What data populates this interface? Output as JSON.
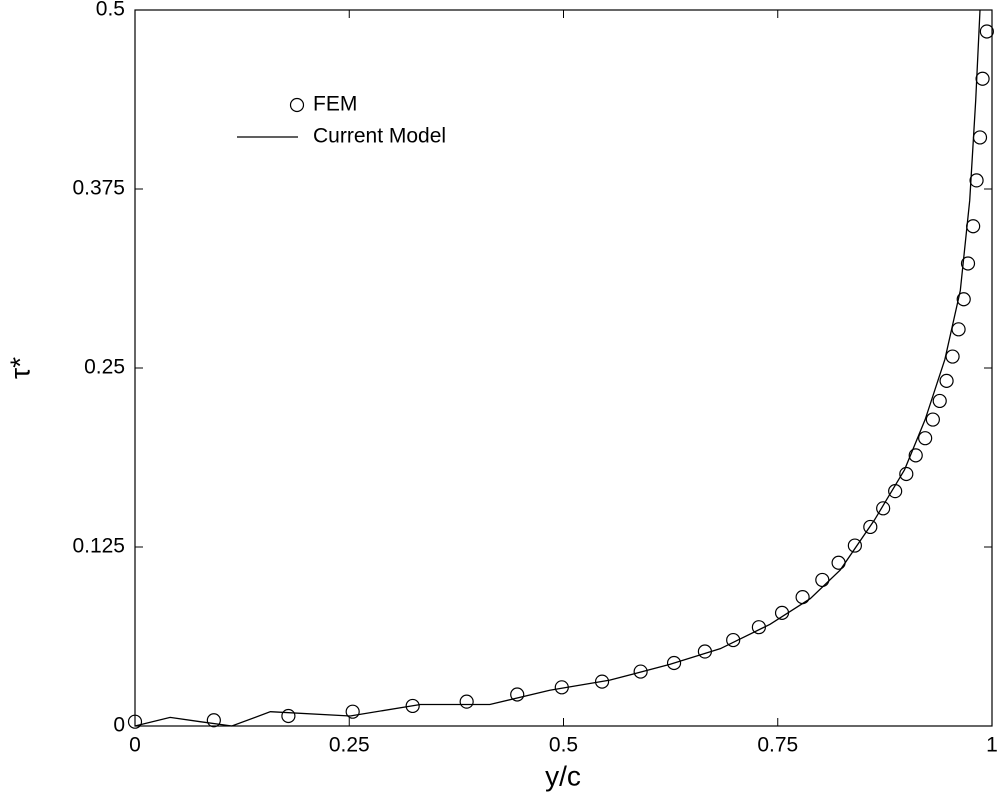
{
  "chart_data": {
    "type": "line",
    "xlabel": "y/c",
    "ylabel": "τ*",
    "xlim": [
      0,
      1
    ],
    "ylim": [
      0,
      0.5
    ],
    "xticks": [
      0,
      0.25,
      0.5,
      0.75,
      1
    ],
    "yticks": [
      0,
      0.125,
      0.25,
      0.375,
      0.5
    ],
    "legend": "upper left",
    "series": [
      {
        "name": "FEM",
        "color": "#000000",
        "style": "markers",
        "x": [
          0,
          0.092,
          0.179,
          0.254,
          0.324,
          0.387,
          0.446,
          0.498,
          0.545,
          0.59,
          0.629,
          0.665,
          0.698,
          0.728,
          0.755,
          0.779,
          0.802,
          0.821,
          0.84,
          0.858,
          0.873,
          0.887,
          0.9,
          0.911,
          0.922,
          0.931,
          0.939,
          0.947,
          0.954,
          0.961,
          0.967,
          0.972,
          0.978,
          0.982,
          0.986,
          0.989,
          0.994
        ],
        "values": [
          0.003,
          0.004,
          0.007,
          0.01,
          0.014,
          0.017,
          0.022,
          0.027,
          0.031,
          0.038,
          0.044,
          0.052,
          0.06,
          0.069,
          0.079,
          0.09,
          0.102,
          0.114,
          0.126,
          0.139,
          0.152,
          0.164,
          0.176,
          0.189,
          0.201,
          0.214,
          0.227,
          0.241,
          0.258,
          0.277,
          0.298,
          0.323,
          0.349,
          0.381,
          0.411,
          0.452,
          0.485
        ]
      },
      {
        "name": "Current Model",
        "color": "#000000",
        "style": "line",
        "x": [
          0,
          0.041,
          0.076,
          0.113,
          0.158,
          0.251,
          0.333,
          0.414,
          0.484,
          0.554,
          0.624,
          0.683,
          0.741,
          0.788,
          0.823,
          0.863,
          0.898,
          0.922,
          0.945,
          0.963,
          0.974,
          0.981,
          0.986
        ],
        "values": [
          0,
          0.006,
          0.003,
          0,
          0.01,
          0.007,
          0.015,
          0.015,
          0.025,
          0.032,
          0.043,
          0.054,
          0.071,
          0.089,
          0.109,
          0.144,
          0.179,
          0.214,
          0.256,
          0.304,
          0.367,
          0.437,
          0.5
        ]
      }
    ]
  }
}
